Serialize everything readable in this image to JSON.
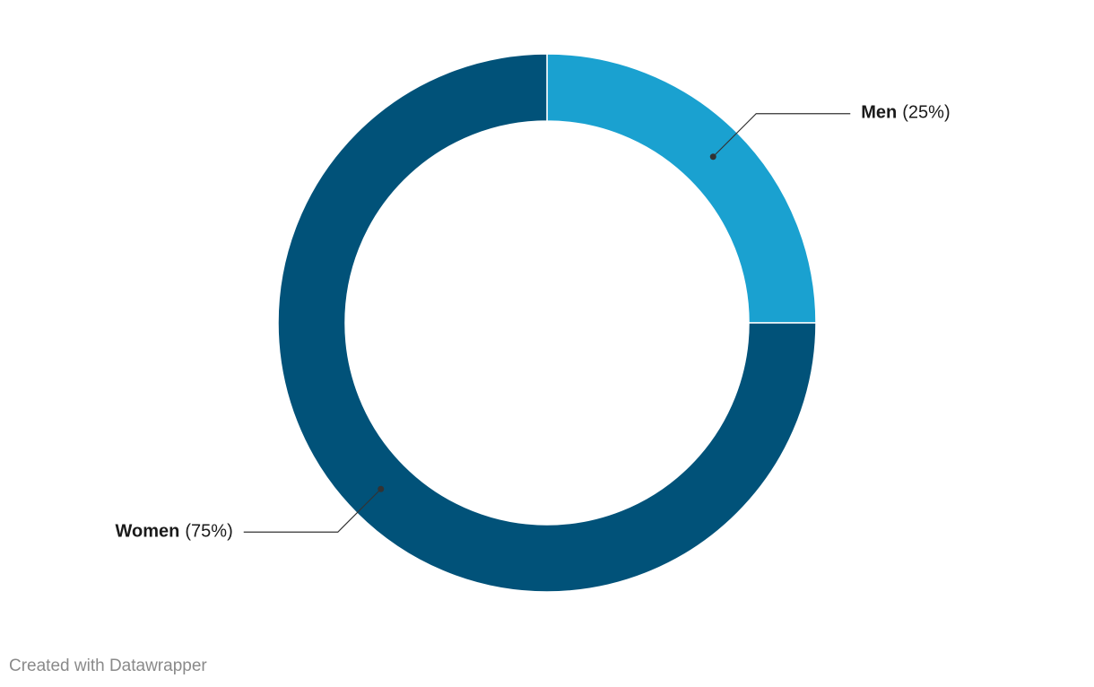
{
  "chart_data": {
    "type": "donut",
    "categories": [
      "Men",
      "Women"
    ],
    "values": [
      25,
      75
    ],
    "value_labels": [
      "(25%)",
      "(75%)"
    ],
    "colors": [
      "#1aa1d0",
      "#015279"
    ],
    "credit": "Created with Datawrapper"
  }
}
